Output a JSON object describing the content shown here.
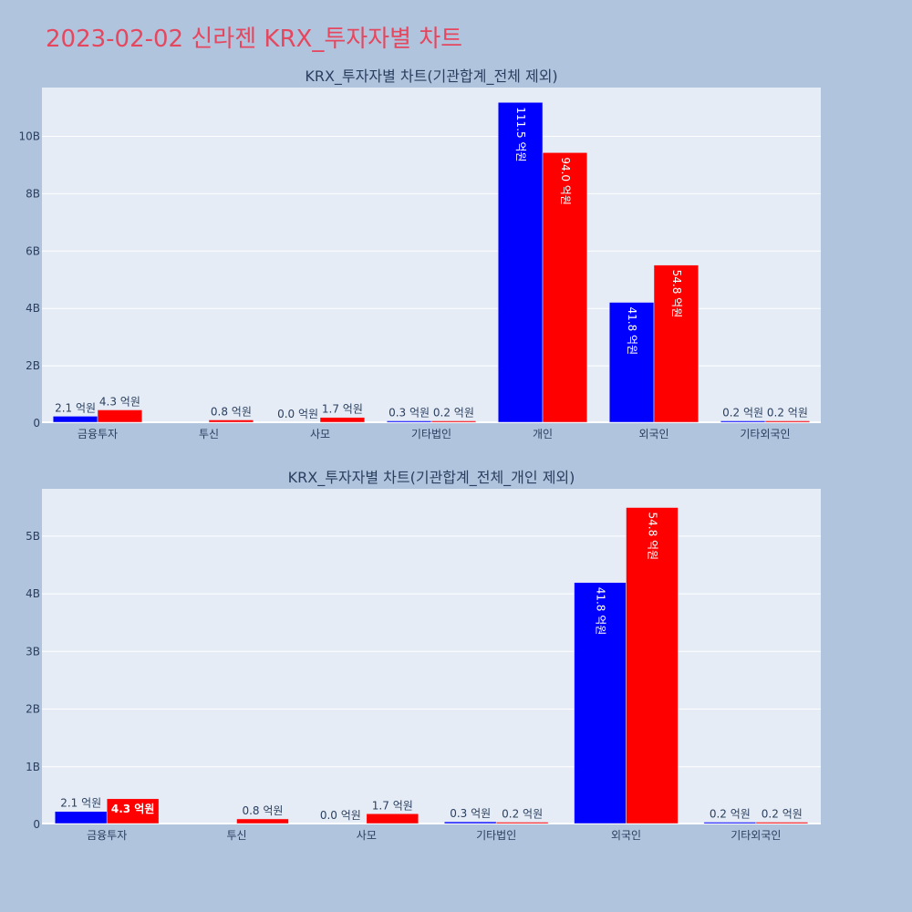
{
  "page_title": "2023-02-02 신라젠 KRX_투자자별 차트",
  "colors": {
    "background": "#b0c4de",
    "plot_background": "#e5ecf6",
    "title": "#e5475f",
    "series_buy": "#0000ff",
    "series_sell": "#ff0000",
    "text": "#2a3f5f"
  },
  "chart_data": [
    {
      "type": "bar",
      "title": "KRX_투자자별 차트(기관합계_전체 제외)",
      "xlabel": "",
      "ylabel": "",
      "categories": [
        "금융투자",
        "투신",
        "사모",
        "기타법인",
        "개인",
        "외국인",
        "기타외국인"
      ],
      "series": [
        {
          "color": "#0000ff",
          "values": [
            210000000,
            0,
            0,
            30000000,
            11150000000,
            4180000000,
            20000000
          ],
          "labels": [
            "2.1 억원",
            "",
            "0.0 억원",
            "0.3 억원",
            "111.5 억원",
            "41.8 억원",
            "0.2 억원"
          ]
        },
        {
          "color": "#ff0000",
          "values": [
            430000000,
            80000000,
            170000000,
            20000000,
            9400000000,
            5480000000,
            20000000
          ],
          "labels": [
            "4.3 억원",
            "0.8 억원",
            "1.7 억원",
            "0.2 억원",
            "94.0 억원",
            "54.8 억원",
            "0.2 억원"
          ]
        }
      ],
      "ylim": [
        0,
        11700000000
      ],
      "yticks": [
        0,
        2000000000,
        4000000000,
        6000000000,
        8000000000,
        10000000000
      ],
      "yticklabels": [
        "0",
        "2B",
        "4B",
        "6B",
        "8B",
        "10B"
      ],
      "grid": true,
      "legend": "none"
    },
    {
      "type": "bar",
      "title": "KRX_투자자별 차트(기관합계_전체_개인 제외)",
      "xlabel": "",
      "ylabel": "",
      "categories": [
        "금융투자",
        "투신",
        "사모",
        "기타법인",
        "외국인",
        "기타외국인"
      ],
      "series": [
        {
          "color": "#0000ff",
          "values": [
            210000000,
            0,
            0,
            30000000,
            4180000000,
            20000000
          ],
          "labels": [
            "2.1 억원",
            "",
            "0.0 억원",
            "0.3 억원",
            "41.8 억원",
            "0.2 억원"
          ]
        },
        {
          "color": "#ff0000",
          "values": [
            430000000,
            80000000,
            170000000,
            20000000,
            5480000000,
            20000000
          ],
          "labels": [
            "4.3 억원",
            "0.8 억원",
            "1.7 억원",
            "0.2 억원",
            "54.8 억원",
            "0.2 억원"
          ]
        }
      ],
      "ylim": [
        0,
        5820000000
      ],
      "yticks": [
        0,
        1000000000,
        2000000000,
        3000000000,
        4000000000,
        5000000000
      ],
      "yticklabels": [
        "0",
        "1B",
        "2B",
        "3B",
        "4B",
        "5B"
      ],
      "grid": true,
      "legend": "none"
    }
  ]
}
